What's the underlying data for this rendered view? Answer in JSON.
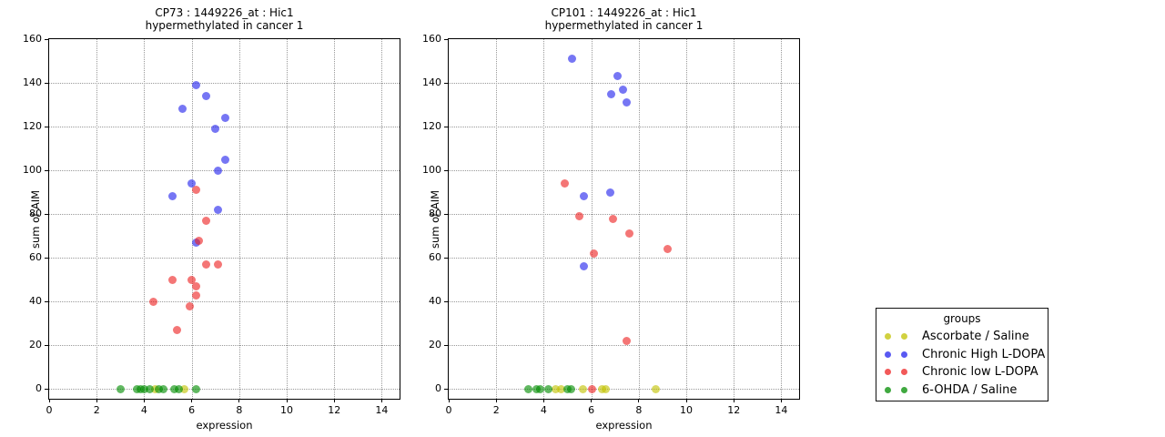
{
  "figure": {
    "background": "#ffffff",
    "grid_color": "#999999",
    "axis_color": "#000000"
  },
  "legend": {
    "title": "groups",
    "entries": [
      {
        "label": "Ascorbate / Saline",
        "color": "#c2c200"
      },
      {
        "label": "Chronic High L-DOPA",
        "color": "#2222ee"
      },
      {
        "label": "Chronic low L-DOPA",
        "color": "#ee2222"
      },
      {
        "label": "6-OHDA / Saline",
        "color": "#008c00"
      }
    ]
  },
  "chart_data": [
    {
      "type": "scatter",
      "title_line1": "CP73 : 1449226_at : Hic1",
      "title_line2": "hypermethylated in cancer 1",
      "xlabel": "expression",
      "ylabel": "sum of AIM",
      "xlim": [
        0,
        14.75
      ],
      "ylim": [
        -4.4,
        160
      ],
      "xticks": [
        0,
        2,
        4,
        6,
        8,
        10,
        12,
        14
      ],
      "yticks": [
        0,
        20,
        40,
        60,
        80,
        100,
        120,
        140,
        160
      ],
      "grid": true,
      "series": [
        {
          "name": "Ascorbate / Saline",
          "color": "#c2c200",
          "points": [
            [
              4.45,
              0
            ],
            [
              5.7,
              0
            ]
          ]
        },
        {
          "name": "Chronic High L-DOPA",
          "color": "#2222ee",
          "points": [
            [
              6.2,
              139
            ],
            [
              6.6,
              134
            ],
            [
              5.6,
              128
            ],
            [
              7.4,
              124
            ],
            [
              7.0,
              119
            ],
            [
              7.4,
              105
            ],
            [
              7.1,
              100
            ],
            [
              6.0,
              94
            ],
            [
              5.2,
              88
            ],
            [
              7.1,
              82
            ],
            [
              6.2,
              67
            ]
          ]
        },
        {
          "name": "Chronic low L-DOPA",
          "color": "#ee2222",
          "points": [
            [
              6.2,
              91
            ],
            [
              6.6,
              77
            ],
            [
              6.3,
              68
            ],
            [
              7.1,
              57
            ],
            [
              6.6,
              57
            ],
            [
              5.2,
              50
            ],
            [
              6.0,
              50
            ],
            [
              6.2,
              47
            ],
            [
              6.2,
              43
            ],
            [
              4.4,
              40
            ],
            [
              5.9,
              38
            ],
            [
              5.4,
              27
            ]
          ]
        },
        {
          "name": "6-OHDA / Saline",
          "color": "#008c00",
          "points": [
            [
              3.0,
              0
            ],
            [
              3.7,
              0
            ],
            [
              3.85,
              0
            ],
            [
              4.0,
              0
            ],
            [
              4.25,
              0
            ],
            [
              4.6,
              0
            ],
            [
              4.8,
              0
            ],
            [
              5.25,
              0
            ],
            [
              5.45,
              0
            ],
            [
              6.2,
              0
            ]
          ]
        }
      ]
    },
    {
      "type": "scatter",
      "title_line1": "CP101 : 1449226_at : Hic1",
      "title_line2": "hypermethylated in cancer 1",
      "xlabel": "expression",
      "ylabel": "sum of AIM",
      "xlim": [
        0,
        14.75
      ],
      "ylim": [
        -4.4,
        160
      ],
      "xticks": [
        0,
        2,
        4,
        6,
        8,
        10,
        12,
        14
      ],
      "yticks": [
        0,
        20,
        40,
        60,
        80,
        100,
        120,
        140,
        160
      ],
      "grid": true,
      "series": [
        {
          "name": "Ascorbate / Saline",
          "color": "#c2c200",
          "points": [
            [
              4.5,
              0
            ],
            [
              4.75,
              0
            ],
            [
              5.65,
              0
            ],
            [
              6.45,
              0
            ],
            [
              6.6,
              0
            ],
            [
              8.7,
              0
            ]
          ]
        },
        {
          "name": "Chronic High L-DOPA",
          "color": "#2222ee",
          "points": [
            [
              5.2,
              151
            ],
            [
              7.1,
              143
            ],
            [
              7.35,
              137
            ],
            [
              6.85,
              135
            ],
            [
              7.5,
              131
            ],
            [
              6.8,
              90
            ],
            [
              5.7,
              88
            ],
            [
              5.7,
              56
            ]
          ]
        },
        {
          "name": "Chronic low L-DOPA",
          "color": "#ee2222",
          "points": [
            [
              4.9,
              94
            ],
            [
              5.5,
              79
            ],
            [
              6.9,
              78
            ],
            [
              7.6,
              71
            ],
            [
              9.2,
              64
            ],
            [
              6.1,
              62
            ],
            [
              7.5,
              22
            ],
            [
              6.05,
              0
            ]
          ]
        },
        {
          "name": "6-OHDA / Saline",
          "color": "#008c00",
          "points": [
            [
              3.35,
              0
            ],
            [
              3.7,
              0
            ],
            [
              3.85,
              0
            ],
            [
              4.2,
              0
            ],
            [
              5.0,
              0
            ],
            [
              5.15,
              0
            ]
          ]
        }
      ]
    }
  ]
}
